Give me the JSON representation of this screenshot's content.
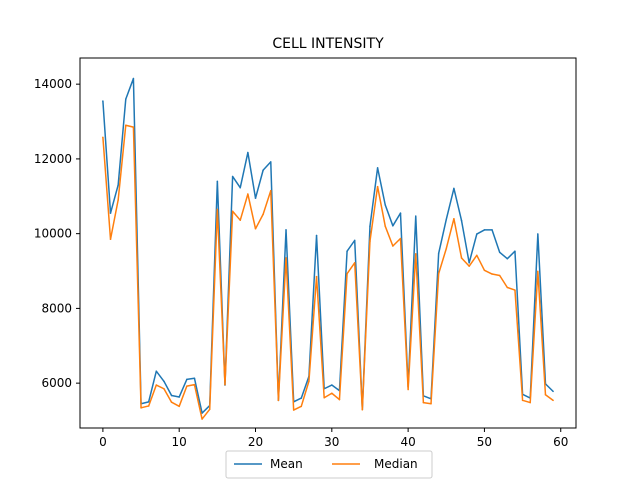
{
  "chart_data": {
    "type": "line",
    "title": "CELL INTENSITY",
    "xlabel": "",
    "ylabel": "",
    "xlim": [
      -3,
      62
    ],
    "ylim": [
      4800,
      14700
    ],
    "x_ticks": [
      0,
      10,
      20,
      30,
      40,
      50,
      60
    ],
    "y_ticks": [
      6000,
      8000,
      10000,
      12000,
      14000
    ],
    "grid": false,
    "legend_position": "bottom-center",
    "x": [
      0,
      1,
      2,
      3,
      4,
      5,
      6,
      7,
      8,
      9,
      10,
      11,
      12,
      13,
      14,
      15,
      16,
      17,
      18,
      19,
      20,
      21,
      22,
      23,
      24,
      25,
      26,
      27,
      28,
      29,
      30,
      31,
      32,
      33,
      34,
      35,
      36,
      37,
      38,
      39,
      40,
      41,
      42,
      43,
      44,
      45,
      46,
      47,
      48,
      49,
      50,
      51,
      52,
      53,
      54,
      55,
      56,
      57,
      58,
      59
    ],
    "series": [
      {
        "name": "Mean",
        "color": "#1f77b4",
        "values": [
          13550,
          10550,
          11300,
          13600,
          14150,
          5450,
          5500,
          6320,
          6050,
          5670,
          5630,
          6100,
          6130,
          5200,
          5400,
          11400,
          5950,
          11530,
          11230,
          12170,
          10950,
          11700,
          11920,
          5540,
          10100,
          5500,
          5600,
          6180,
          9950,
          5850,
          5950,
          5800,
          9530,
          9820,
          5300,
          10200,
          11760,
          10770,
          10210,
          10550,
          5900,
          10470,
          5660,
          5580,
          9470,
          10380,
          11210,
          10350,
          9220,
          9990,
          10100,
          10100,
          9500,
          9330,
          9530,
          5700,
          5600,
          9990,
          5980,
          5780
        ]
      },
      {
        "name": "Median",
        "color": "#ff7f0e",
        "values": [
          12580,
          9850,
          10900,
          12900,
          12850,
          5340,
          5390,
          5950,
          5850,
          5490,
          5380,
          5920,
          5960,
          5040,
          5300,
          10650,
          5960,
          10600,
          10360,
          11060,
          10130,
          10520,
          11150,
          5540,
          9350,
          5280,
          5380,
          6050,
          8850,
          5610,
          5730,
          5560,
          8930,
          9220,
          5290,
          9800,
          11260,
          10200,
          9670,
          9870,
          5830,
          9460,
          5480,
          5450,
          8930,
          9600,
          10400,
          9350,
          9130,
          9420,
          9020,
          8920,
          8880,
          8560,
          8490,
          5540,
          5480,
          8990,
          5690,
          5540
        ]
      }
    ]
  }
}
